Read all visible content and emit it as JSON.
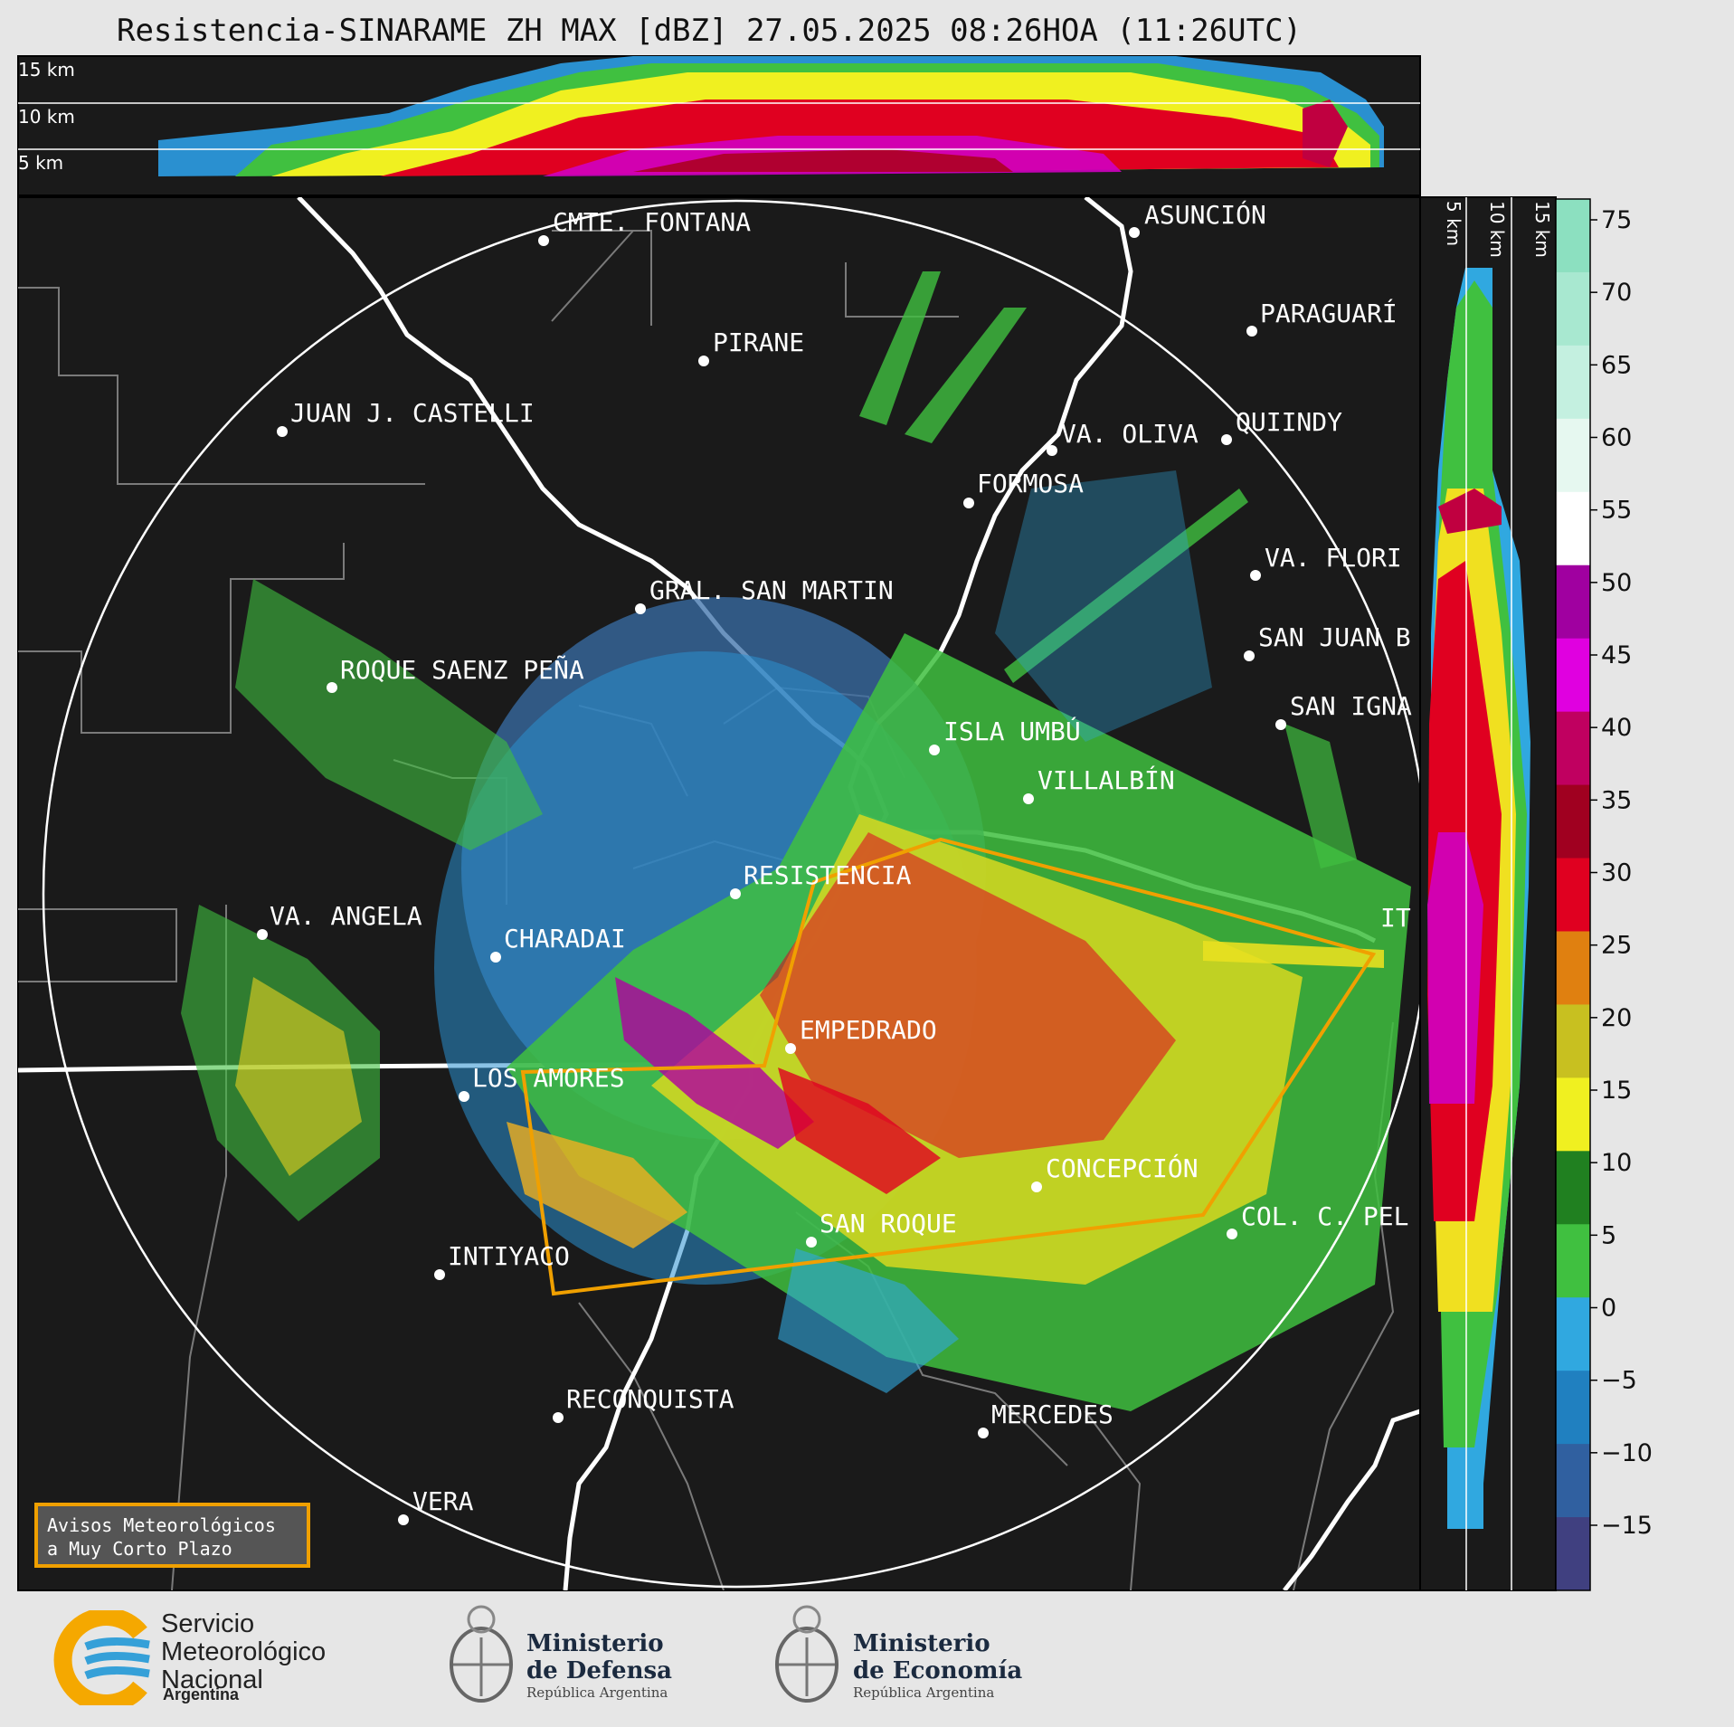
{
  "header": {
    "title": "Resistencia-SINARAME ZH MAX [dBZ] 27.05.2025 08:26HOA (11:26UTC)"
  },
  "cross_section_top": {
    "height_labels": [
      "15 km",
      "10 km",
      "5 km"
    ]
  },
  "cross_section_right": {
    "height_labels": [
      "5 km",
      "10 km",
      "15 km"
    ]
  },
  "colorbar": {
    "unit": "dBZ",
    "ticks": [
      "75",
      "70",
      "65",
      "60",
      "55",
      "50",
      "45",
      "40",
      "35",
      "30",
      "25",
      "20",
      "15",
      "10",
      "5",
      "0",
      "−5",
      "−10",
      "−15"
    ],
    "colors": [
      "#8ce0c0",
      "#a8e8d0",
      "#c4f0e0",
      "#e6f8f0",
      "#ffffff",
      "#a000a0",
      "#e000e0",
      "#c00060",
      "#a00020",
      "#e00020",
      "#e08010",
      "#c8c020",
      "#f0f020",
      "#208020",
      "#40c040",
      "#30a8e0",
      "#2080c0",
      "#3060a0",
      "#404080"
    ]
  },
  "map": {
    "places": [
      {
        "name": "CMTE. FONTANA"
      },
      {
        "name": "ASUNCIÓN"
      },
      {
        "name": "PIRANE"
      },
      {
        "name": "PARAGUARÍ"
      },
      {
        "name": "JUAN J. CASTELLI"
      },
      {
        "name": "VA. OLIVA"
      },
      {
        "name": "QUIINDY"
      },
      {
        "name": "FORMOSA"
      },
      {
        "name": "VA. FLORI"
      },
      {
        "name": "GRAL. SAN MARTIN"
      },
      {
        "name": "SAN JUAN B"
      },
      {
        "name": "ROQUE SAENZ PEÑA"
      },
      {
        "name": "SAN IGNA"
      },
      {
        "name": "ISLA UMBÚ"
      },
      {
        "name": "VILLALBÍN"
      },
      {
        "name": "RESISTENCIA"
      },
      {
        "name": "IT"
      },
      {
        "name": "VA. ANGELA"
      },
      {
        "name": "CHARADAI"
      },
      {
        "name": "EMPEDRADO"
      },
      {
        "name": "LOS AMORES"
      },
      {
        "name": "CONCEPCIÓN"
      },
      {
        "name": "SAN ROQUE"
      },
      {
        "name": "COL. C. PEL"
      },
      {
        "name": "INTIYACO"
      },
      {
        "name": "RECONQUISTA"
      },
      {
        "name": "MERCEDES"
      },
      {
        "name": "VERA"
      }
    ]
  },
  "warning_box": {
    "line1": "Avisos Meteorológicos",
    "line2": "a Muy Corto Plazo",
    "border_color": "#f0a000"
  },
  "logos": {
    "smn": {
      "line1": "Servicio",
      "line2": "Meteorológico",
      "line3": "Nacional",
      "country": "Argentina"
    },
    "defensa": {
      "line1": "Ministerio",
      "line2": "de Defensa",
      "sub": "República Argentina"
    },
    "economia": {
      "line1": "Ministerio",
      "line2": "de Economía",
      "sub": "República Argentina"
    }
  }
}
